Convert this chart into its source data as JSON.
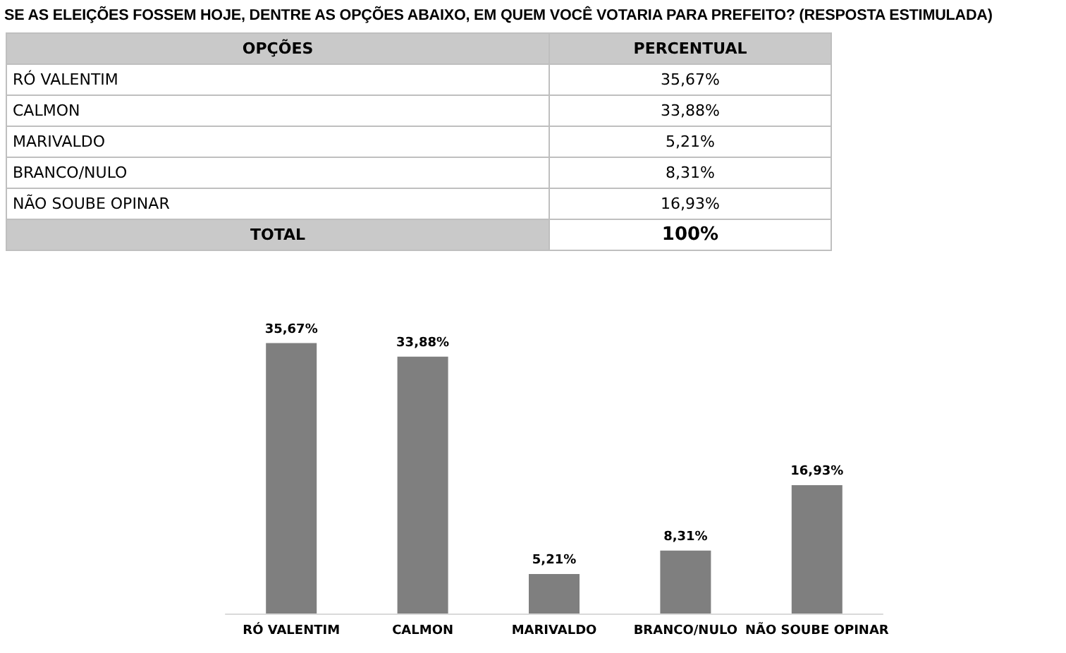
{
  "chart_data": {
    "type": "bar",
    "title": "SE AS ELEIÇÕES FOSSEM HOJE, DENTRE AS OPÇÕES ABAIXO, EM QUEM VOCÊ VOTARIA PARA PREFEITO? (RESPOSTA ESTIMULADA)",
    "categories": [
      "RÓ VALENTIM",
      "CALMON",
      "MARIVALDO",
      "BRANCO/NULO",
      "NÃO SOUBE OPINAR"
    ],
    "values": [
      35.67,
      33.88,
      5.21,
      8.31,
      16.93
    ],
    "value_labels": [
      "35,67%",
      "33,88%",
      "5,21%",
      "8,31%",
      "16,93%"
    ],
    "color": "#7f7f7f",
    "annotations": [
      "OPÇÕES",
      "PERCENTUAL",
      "TOTAL",
      "100%"
    ]
  }
}
